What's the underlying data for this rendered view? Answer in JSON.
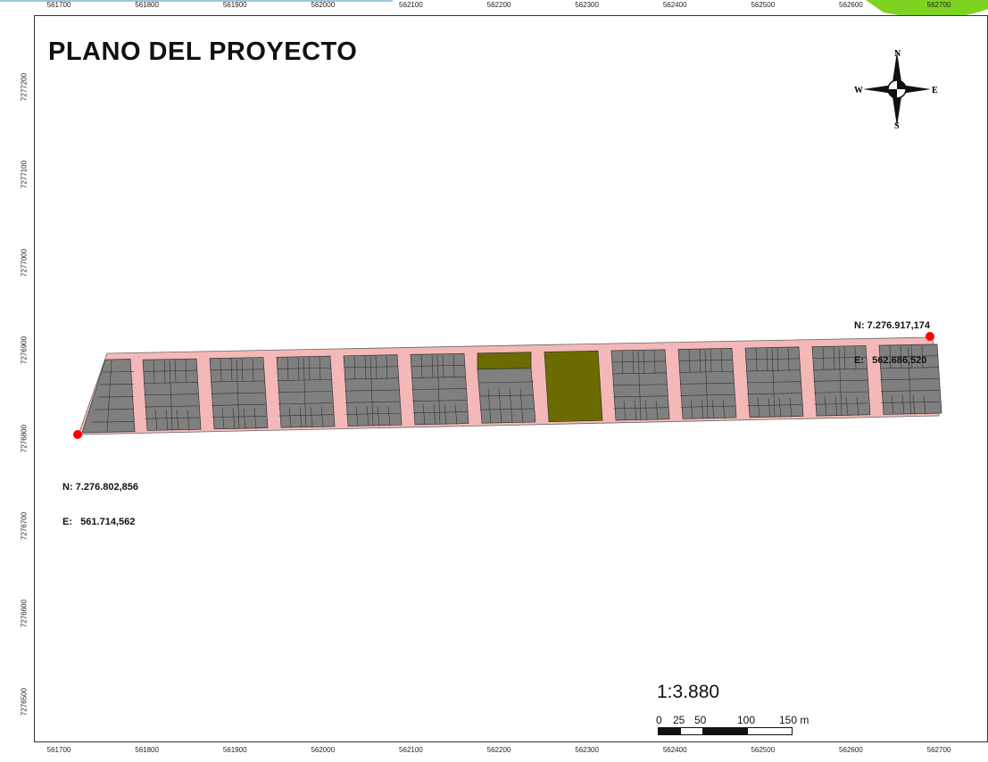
{
  "map": {
    "title": "PLANO DEL PROYECTO",
    "scale": "1:3.880",
    "scale_bar_labels": [
      "0",
      "25",
      "50",
      "100",
      "150 m"
    ],
    "x_ticks": [
      "561700",
      "561800",
      "561900",
      "562000",
      "562100",
      "562200",
      "562300",
      "562400",
      "562500",
      "562600",
      "562700"
    ],
    "y_ticks": [
      "7277200",
      "7277100",
      "7277000",
      "7276900",
      "7276800",
      "7276700",
      "7276600",
      "7276500"
    ],
    "north_arrow": {
      "n": "N",
      "s": "S",
      "e": "E",
      "w": "W"
    },
    "point_east": {
      "n_label": "N: 7.276.917,174",
      "e_label": "E:   562.686,520"
    },
    "point_west": {
      "n_label": "N: 7.276.802,856",
      "e_label": "E:   561.714,562"
    },
    "colors": {
      "road": "#f4b8b8",
      "lot": "#808080",
      "green_area": "#6b6b00",
      "marker": "#ff0000",
      "accent": "#7ed321"
    }
  }
}
